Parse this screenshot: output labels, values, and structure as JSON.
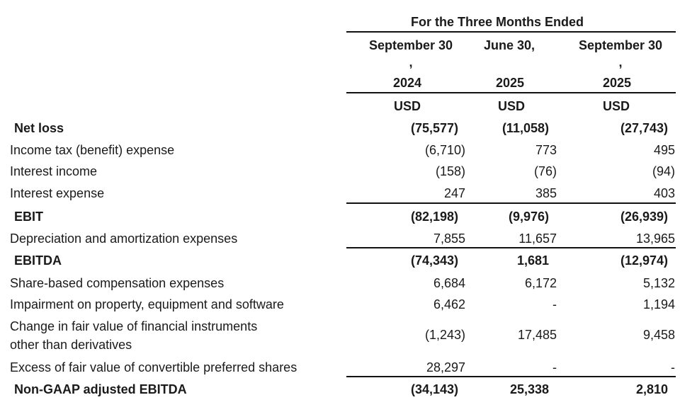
{
  "header": {
    "period_title": "For the Three Months Ended",
    "columns": [
      {
        "date": "September 30",
        "comma": ",",
        "year": "2024",
        "currency": "USD"
      },
      {
        "date": "June 30,",
        "comma": "",
        "year": "2025",
        "currency": "USD"
      },
      {
        "date": "September 30",
        "comma": ",",
        "year": "2025",
        "currency": "USD"
      }
    ]
  },
  "rows": [
    {
      "label": "Net loss",
      "bold": true,
      "values": [
        "(75,577)",
        "(11,058)",
        "(27,743)"
      ]
    },
    {
      "label": "Income tax (benefit) expense",
      "bold": false,
      "values": [
        "(6,710)",
        "773",
        "495"
      ]
    },
    {
      "label": "Interest income",
      "bold": false,
      "values": [
        "(158)",
        "(76)",
        "(94)"
      ]
    },
    {
      "label": "Interest expense",
      "bold": false,
      "values": [
        "247",
        "385",
        "403"
      ]
    },
    {
      "label": "EBIT",
      "bold": true,
      "values": [
        "(82,198)",
        "(9,976)",
        "(26,939)"
      ]
    },
    {
      "label": "Depreciation and amortization expenses",
      "bold": false,
      "values": [
        "7,855",
        "11,657",
        "13,965"
      ]
    },
    {
      "label": "EBITDA",
      "bold": true,
      "values": [
        "(74,343)",
        "1,681",
        "(12,974)"
      ]
    },
    {
      "label": "Share-based compensation expenses",
      "bold": false,
      "values": [
        "6,684",
        "6,172",
        "5,132"
      ]
    },
    {
      "label": "Impairment on property, equipment and software",
      "bold": false,
      "values": [
        "6,462",
        "-",
        "1,194"
      ]
    },
    {
      "label": "Change in fair value of financial instruments",
      "label2": "other than derivatives",
      "bold": false,
      "values": [
        "(1,243)",
        "17,485",
        "9,458"
      ]
    },
    {
      "label": "Excess of fair value of convertible preferred shares",
      "bold": false,
      "values": [
        "28,297",
        "-",
        "-"
      ]
    },
    {
      "label": "Non-GAAP adjusted EBITDA",
      "bold": true,
      "values": [
        "(34,143)",
        "25,338",
        "2,810"
      ]
    }
  ]
}
